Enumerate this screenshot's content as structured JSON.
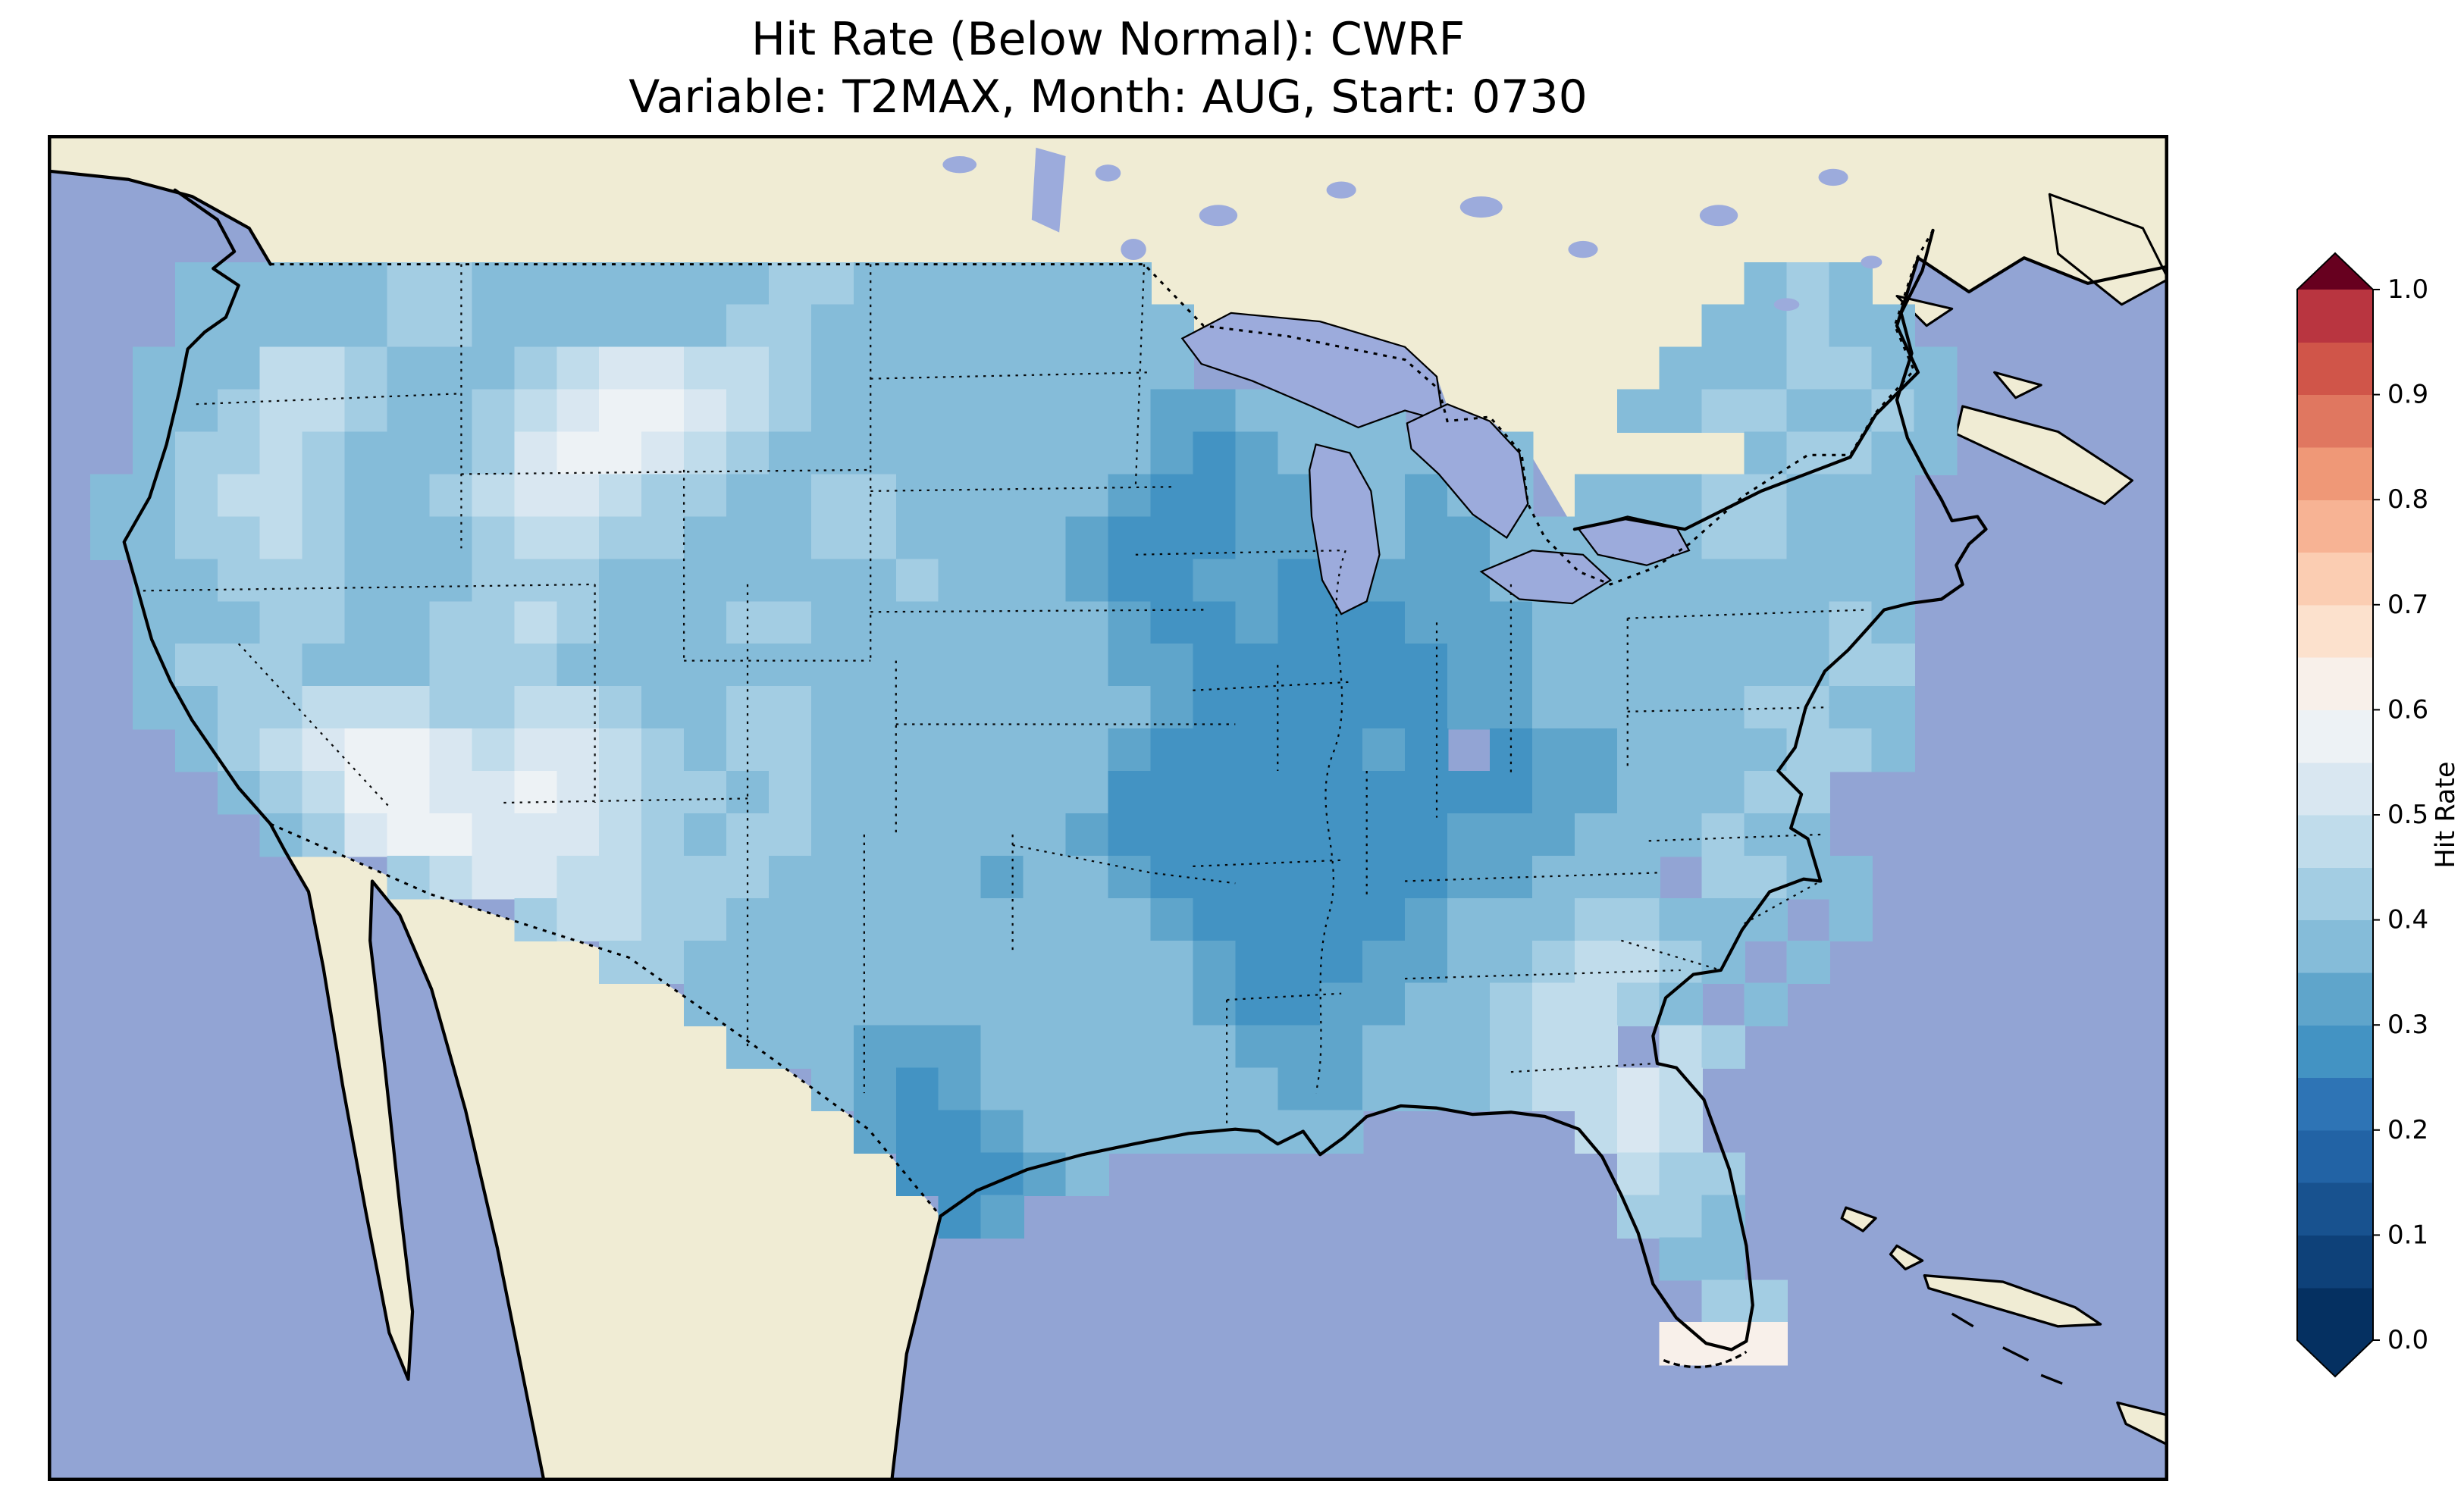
{
  "chart_data": {
    "type": "heatmap",
    "title": "Hit Rate (Below Normal): CWRF",
    "subtitle": "Variable: T2MAX, Month: AUG, Start: 0730",
    "legend_position": "right",
    "colorbar": {
      "label": "Hit Rate",
      "orientation": "vertical",
      "extend": "both",
      "range": [
        0.0,
        1.0
      ],
      "level_step": 0.05,
      "ticks": [
        {
          "label": "1.0",
          "value": 1.0
        },
        {
          "label": "0.9",
          "value": 0.9
        },
        {
          "label": "0.8",
          "value": 0.8
        },
        {
          "label": "0.7",
          "value": 0.7
        },
        {
          "label": "0.6",
          "value": 0.6
        },
        {
          "label": "0.5",
          "value": 0.5
        },
        {
          "label": "0.4",
          "value": 0.4
        },
        {
          "label": "0.3",
          "value": 0.3
        },
        {
          "label": "0.2",
          "value": 0.2
        },
        {
          "label": "0.1",
          "value": 0.1
        },
        {
          "label": "0.0",
          "value": 0.0
        }
      ],
      "band_colors": [
        "#053061",
        "#0e4179",
        "#18528f",
        "#2263a5",
        "#2e74b5",
        "#4393c3",
        "#5fa5cb",
        "#85bcd9",
        "#a3cde3",
        "#c0dceb",
        "#d9e7f1",
        "#edf2f5",
        "#f8f0ea",
        "#fce1cd",
        "#fbcdb2",
        "#f7b394",
        "#ef9877",
        "#e07760",
        "#d05549",
        "#b93540"
      ],
      "under_color": "#053061",
      "over_color": "#67001f"
    },
    "grid": {
      "description": "Gridded hit-rate field over the contiguous US. Each character is a base36 color-band index; value = index*0.05 + 0.025; '.' = no data (outside US).",
      "cell_size": 20,
      "origin": [
        0,
        40
      ],
      "rows": [
        "..................................................",
        "...77777887777777887777777..............787.......",
        "...777778877777788777777777............77877......",
        "..77799877789aa998777777777...........7778877.....",
        "..7789987789abba9877777777667777.....77887787.....",
        "..788987778abba98777777777656777777.....78877.....",
        ".7789987789aa9887788777776556677677.77788777......",
        ".7788987778998877788777765556677667777788777......",
        "..778887778887777777877765566556667777777777......",
        "..777887788987778877777776556555666777777787......",
        "..788877788877777777777776655555566777777788......",
        "..778899988998778877777777655555566777778877......",
        "...789abba9aa98788777777765555565 5667777887......",
        "....789bbaaba98878777777755555555556677788 .......",
        ".....78abbaaa98788777777655555555666777877........",
        "........89aa99888777776776555555566777 8877.......",
        "...........899887777777777655555677788777 7.......",
        ".............887777777777776555667789987 7........",
        "...............777777777777655667789987 7.........",
        "................777666777777666777899 98..........",
        "..................7656777777766777899a9...........",
        "...................655677777777.....9a9...........",
        "....................55567............988..........",
        ".....................56..............887..........",
        "......................................77..........",
        ".......................................88.........",
        "......................................ccc.........",
        ".................................................."
      ]
    },
    "map": {
      "region": "Contiguous United States with surrounding Canada, Mexico, Atlantic and Pacific oceans, Great Lakes, Gulf of Mexico, Cuba and Bahamas"
    }
  },
  "colors": {
    "ocean": "#92a4d4",
    "lake": "#9cabdc",
    "land": "#f0ecd4",
    "coastline": "#000000",
    "border": "#000000",
    "title_text": "#000000"
  }
}
